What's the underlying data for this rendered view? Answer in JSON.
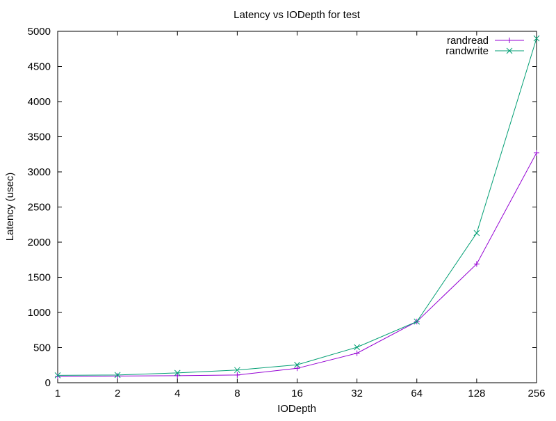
{
  "chart_data": {
    "type": "line",
    "title": "Latency vs IODepth for test",
    "xlabel": "IODepth",
    "ylabel": "Latency (usec)",
    "x": [
      1,
      2,
      4,
      8,
      16,
      32,
      64,
      128,
      256
    ],
    "x_tick_labels": [
      "1",
      "2",
      "4",
      "8",
      "16",
      "32",
      "64",
      "128",
      "256"
    ],
    "x_scale": "log2",
    "ylim": [
      0,
      5000
    ],
    "y_ticks": [
      0,
      500,
      1000,
      1500,
      2000,
      2500,
      3000,
      3500,
      4000,
      4500,
      5000
    ],
    "y_tick_labels": [
      "0",
      "500",
      "1000",
      "1500",
      "2000",
      "2500",
      "3000",
      "3500",
      "4000",
      "4500",
      "5000"
    ],
    "grid": false,
    "legend_position": "top-right",
    "series": [
      {
        "name": "randread",
        "marker": "plus",
        "color": "#9400d3",
        "values": [
          90,
          95,
          100,
          110,
          205,
          420,
          870,
          1690,
          3270
        ]
      },
      {
        "name": "randwrite",
        "marker": "cross",
        "color": "#009e73",
        "values": [
          105,
          110,
          140,
          180,
          255,
          505,
          870,
          2130,
          4900
        ]
      }
    ]
  }
}
